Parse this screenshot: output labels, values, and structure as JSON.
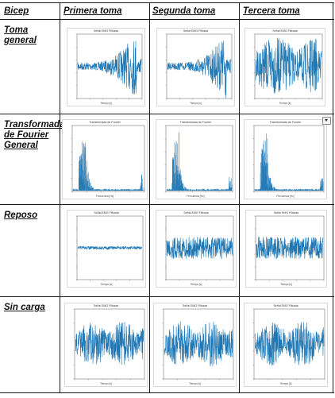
{
  "table": {
    "headers": [
      "Bicep",
      "Primera toma",
      "Segunda toma",
      "Tercera toma"
    ],
    "rows": [
      {
        "label": "Toma general",
        "plots": [
          {
            "title": "Señal EMG Filtrada",
            "xlabel": "Tiempo [s]",
            "kind": "rising"
          },
          {
            "title": "Señal EMG Filtrada",
            "xlabel": "Tiempo [s]",
            "kind": "rising"
          },
          {
            "title": "Señal EMG Filtrada",
            "xlabel": "Tiempo [s]",
            "kind": "dense"
          }
        ]
      },
      {
        "label": "Transformada de Fourier General",
        "plots": [
          {
            "title": "Transformada de Fourier",
            "xlabel": "Frecuencia [Hz]",
            "kind": "fft"
          },
          {
            "title": "Transformada de Fourier",
            "xlabel": "Frecuencia [Hz]",
            "kind": "fft"
          },
          {
            "title": "Transformada de Fourier",
            "xlabel": "Frecuencia [Hz]",
            "kind": "fft"
          }
        ]
      },
      {
        "label": "Reposo",
        "plots": [
          {
            "title": "Señal EMG Filtrada",
            "xlabel": "Tiempo [s]",
            "kind": "flat"
          },
          {
            "title": "Señal EMG Filtrada",
            "xlabel": "Tiempo [s]",
            "kind": "noise"
          },
          {
            "title": "Señal EMG Filtrada",
            "xlabel": "Tiempo [s]",
            "kind": "noise"
          }
        ]
      },
      {
        "label": "Sin carga",
        "plots": [
          {
            "title": "Señal EMG Filtrada",
            "xlabel": "Tiempo [s]",
            "kind": "burst"
          },
          {
            "title": "Señal EMG Filtrada",
            "xlabel": "Tiempo [s]",
            "kind": "burst"
          },
          {
            "title": "Señal EMG Filtrada",
            "xlabel": "Tiempo [s]",
            "kind": "burst"
          }
        ]
      }
    ]
  },
  "colors": {
    "signal": "#1f77b4",
    "border": "#1a1a1a"
  }
}
